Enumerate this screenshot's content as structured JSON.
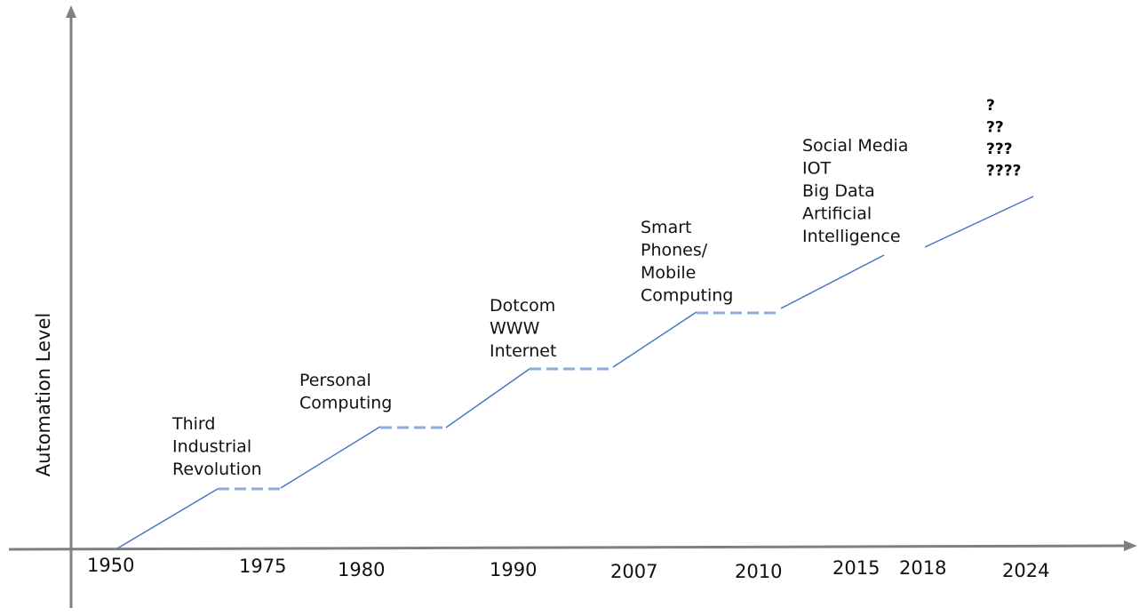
{
  "y_axis_title": "Automation Level",
  "years": [
    "1950",
    "1975",
    "1980",
    "1990",
    "2007",
    "2010",
    "2015",
    "2018",
    "2024"
  ],
  "eras": [
    {
      "lines": [
        "Third",
        "Industrial",
        "Revolution"
      ]
    },
    {
      "lines": [
        "Personal",
        "Computing"
      ]
    },
    {
      "lines": [
        "Dotcom",
        "WWW",
        "Internet"
      ]
    },
    {
      "lines": [
        "Smart",
        "Phones/",
        "Mobile",
        "Computing"
      ]
    },
    {
      "lines": [
        "Social Media",
        "IOT",
        "Big Data",
        "Artificial",
        "Intelligence"
      ]
    }
  ],
  "future": {
    "lines": [
      "?",
      "??",
      "???",
      "????"
    ]
  },
  "colors": {
    "axis": "#808080",
    "trend_line": "#4472c4",
    "plateau_dash": "#8faadc",
    "text": "#111111"
  }
}
